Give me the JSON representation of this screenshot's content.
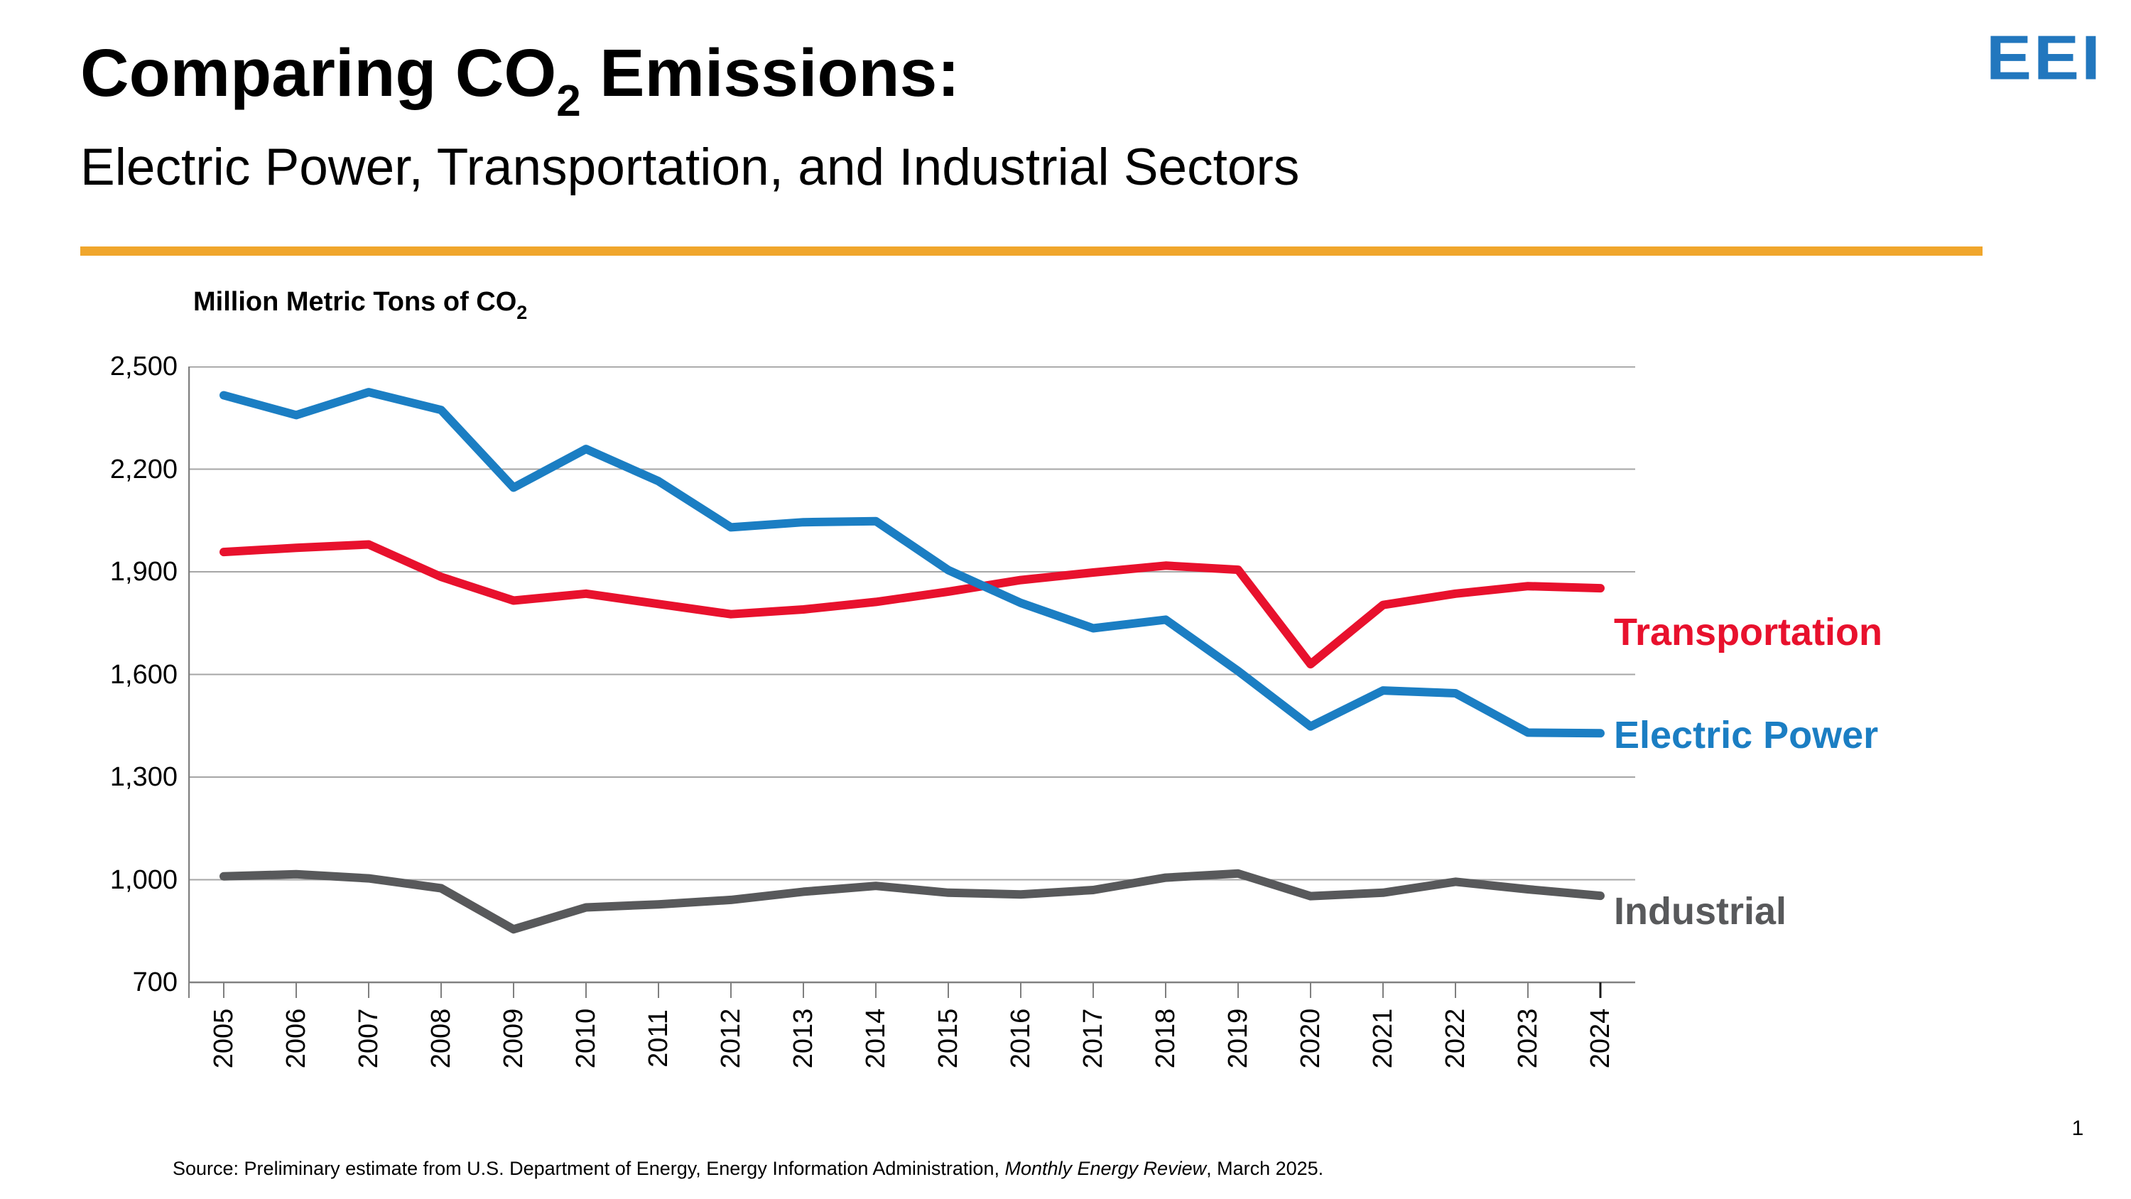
{
  "header": {
    "title_prefix": "Comparing CO",
    "title_subscript": "2",
    "title_suffix": " Emissions:",
    "subtitle": "Electric Power, Transportation, and Industrial Sectors",
    "logo_text": "EEI"
  },
  "axis": {
    "y_title_prefix": "Million Metric Tons of CO",
    "y_title_subscript": "2"
  },
  "chart_data": {
    "type": "line",
    "title": "Comparing CO2 Emissions: Electric Power, Transportation, and Industrial Sectors",
    "ylabel": "Million Metric Tons of CO2",
    "xlabel": "",
    "ylim": [
      700,
      2500
    ],
    "yticks": [
      2500,
      2200,
      1900,
      1600,
      1300,
      1000,
      700
    ],
    "grid": "horizontal",
    "legend_position": "right of line ends",
    "x": [
      2005,
      2006,
      2007,
      2008,
      2009,
      2010,
      2011,
      2012,
      2013,
      2014,
      2015,
      2016,
      2017,
      2018,
      2019,
      2020,
      2021,
      2022,
      2023,
      2024
    ],
    "series": [
      {
        "name": "Transportation",
        "color": "#E8112D",
        "values": [
          1958,
          1970,
          1980,
          1885,
          1816,
          1836,
          1806,
          1776,
          1790,
          1812,
          1842,
          1876,
          1898,
          1918,
          1906,
          1630,
          1803,
          1836,
          1858,
          1852
        ]
      },
      {
        "name": "Electric Power",
        "color": "#1B7EC3",
        "values": [
          2416,
          2358,
          2425,
          2373,
          2146,
          2259,
          2165,
          2030,
          2045,
          2048,
          1905,
          1809,
          1735,
          1760,
          1610,
          1448,
          1553,
          1545,
          1430,
          1428
        ]
      },
      {
        "name": "Industrial",
        "color": "#58595B",
        "values": [
          1010,
          1016,
          1004,
          975,
          855,
          919,
          928,
          941,
          965,
          982,
          962,
          957,
          970,
          1006,
          1018,
          952,
          962,
          994,
          972,
          953
        ]
      }
    ]
  },
  "footer": {
    "source_prefix": "Source: Preliminary estimate from U.S. Department of Energy, Energy Information Administration, ",
    "source_italic": "Monthly Energy Review",
    "source_suffix": ", March 2025.",
    "page_number": "1"
  },
  "colors": {
    "accent_rule": "#F0A62C",
    "logo_blue": "#2277BE",
    "gridline": "#A6A6A6",
    "axis_line": "#808080",
    "tick": "#7F7F7F",
    "last_tick": "#1A1A1A",
    "text": "#000000"
  }
}
